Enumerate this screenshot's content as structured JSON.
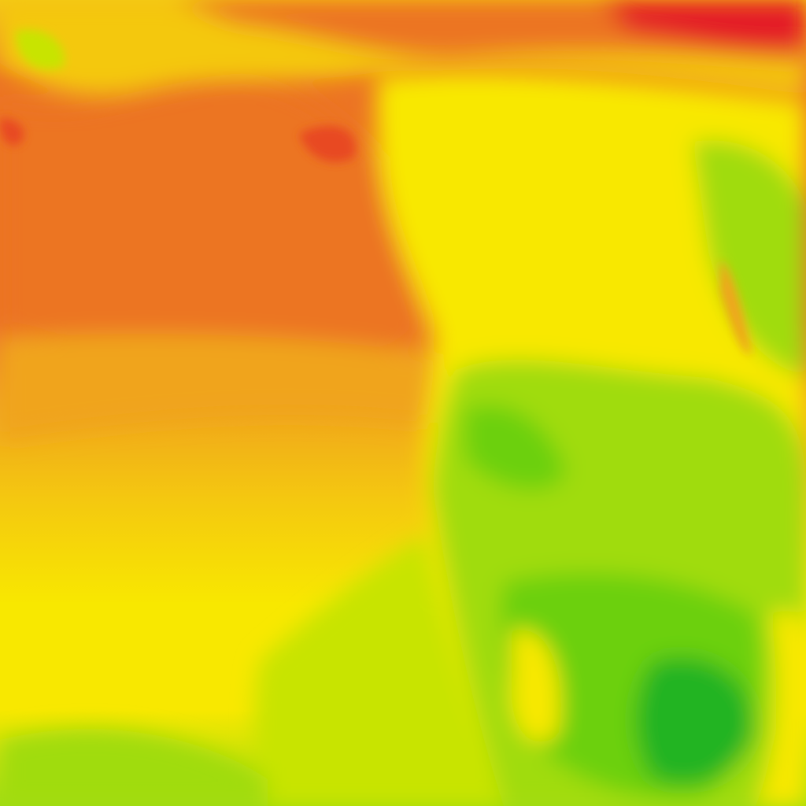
{
  "map": {
    "type": "temperature-heatmap-tile",
    "palette": {
      "hot_red": "#e41e26",
      "red_orange": "#e84a22",
      "orange": "#ec7424",
      "amber": "#f0a41c",
      "gold": "#f4c810",
      "yellow": "#f8e800",
      "yellow_green": "#c8e400",
      "light_green": "#a0dc0c",
      "green": "#6cd010",
      "dark_green": "#24b424"
    }
  }
}
